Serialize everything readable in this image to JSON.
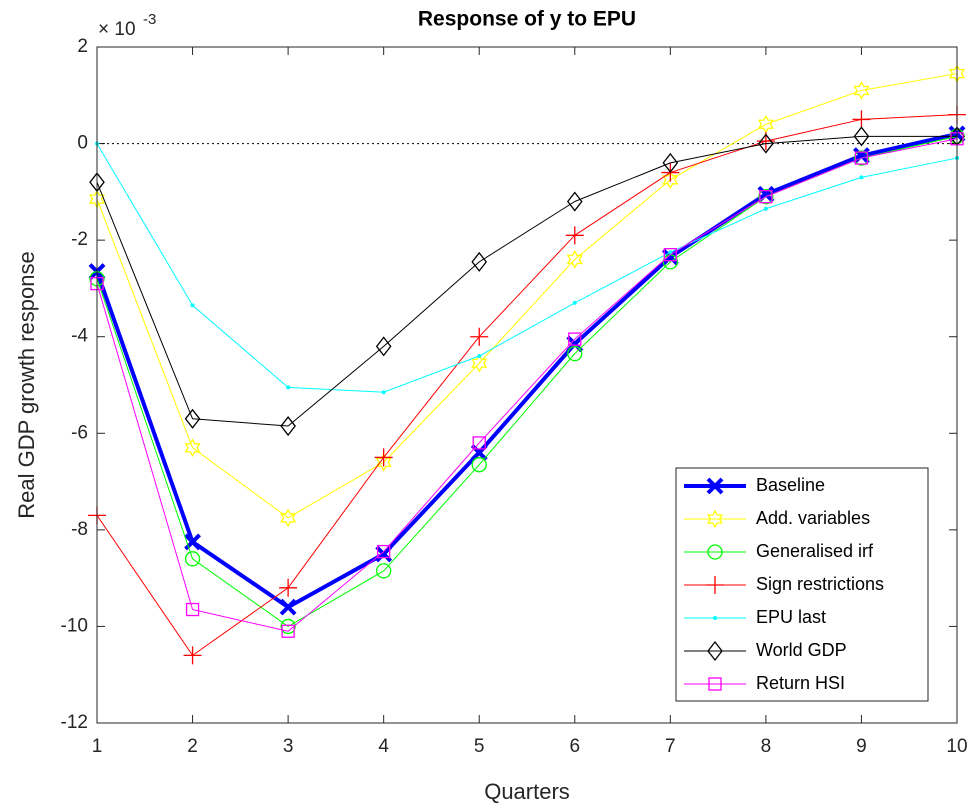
{
  "chart_data": {
    "type": "line",
    "title": "Response of y to EPU",
    "x_label": "Quarters",
    "y_label": "Real GDP growth response",
    "y_multiplier": {
      "base": "× 10",
      "exponent": "-3"
    },
    "x": [
      1,
      2,
      3,
      4,
      5,
      6,
      7,
      8,
      9,
      10
    ],
    "xlim": [
      1,
      10
    ],
    "xticks": [
      1,
      2,
      3,
      4,
      5,
      6,
      7,
      8,
      9,
      10
    ],
    "ylim": [
      -12,
      2
    ],
    "yticks": [
      -12,
      -10,
      -8,
      -6,
      -4,
      -2,
      0,
      2
    ],
    "reference_line": 0,
    "legend": "lower-right",
    "series": [
      {
        "name": "Baseline",
        "color": "#0000ff",
        "marker": "x",
        "line_width": 4,
        "values": [
          -2.65,
          -8.25,
          -9.6,
          -8.5,
          -6.4,
          -4.15,
          -2.35,
          -1.05,
          -0.25,
          0.2
        ]
      },
      {
        "name": "Add. variables",
        "color": "#ffff00",
        "marker": "hexagram",
        "line_width": 1,
        "values": [
          -1.15,
          -6.3,
          -7.75,
          -6.6,
          -4.55,
          -2.4,
          -0.75,
          0.4,
          1.1,
          1.45
        ]
      },
      {
        "name": "Generalised irf",
        "color": "#00ff00",
        "marker": "circle",
        "line_width": 1,
        "values": [
          -2.8,
          -8.6,
          -10.0,
          -8.85,
          -6.65,
          -4.35,
          -2.45,
          -1.1,
          -0.3,
          0.15
        ]
      },
      {
        "name": "Sign restrictions",
        "color": "#ff0000",
        "marker": "plus",
        "line_width": 1,
        "values": [
          -7.7,
          -10.6,
          -9.2,
          -6.5,
          -4.0,
          -1.9,
          -0.6,
          0.05,
          0.5,
          0.6
        ]
      },
      {
        "name": "EPU last",
        "color": "#00ffff",
        "marker": "dot",
        "line_width": 1,
        "values": [
          0,
          -3.35,
          -5.05,
          -5.15,
          -4.4,
          -3.3,
          -2.25,
          -1.35,
          -0.7,
          -0.3
        ]
      },
      {
        "name": "World GDP",
        "color": "#000000",
        "marker": "diamond",
        "line_width": 1,
        "values": [
          -0.8,
          -5.7,
          -5.85,
          -4.2,
          -2.45,
          -1.2,
          -0.4,
          0.0,
          0.15,
          0.15
        ]
      },
      {
        "name": "Return HSI",
        "color": "#ff00ff",
        "marker": "square",
        "line_width": 1,
        "values": [
          -2.9,
          -9.65,
          -10.1,
          -8.45,
          -6.2,
          -4.05,
          -2.3,
          -1.1,
          -0.3,
          0.1
        ]
      }
    ]
  }
}
